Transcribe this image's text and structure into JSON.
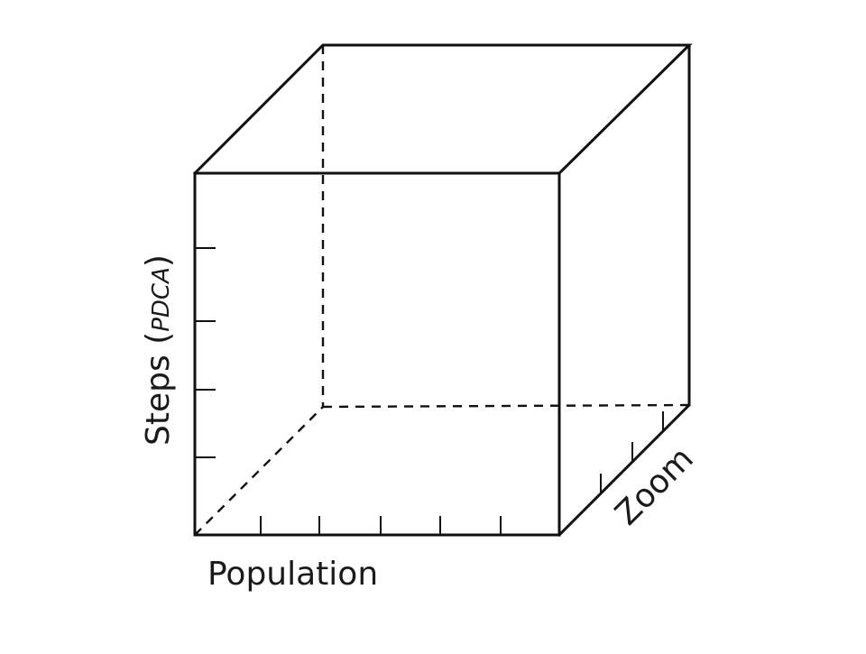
{
  "diagram": {
    "axes": {
      "x": {
        "label": "Population",
        "tick_count": 5
      },
      "y": {
        "label_main": "Steps (",
        "label_italic": "PDCA",
        "label_close": ")",
        "tick_count": 4
      },
      "z": {
        "label": "Zoom",
        "tick_count": 3
      }
    },
    "colors": {
      "line": "#111111",
      "background": "#ffffff"
    }
  }
}
